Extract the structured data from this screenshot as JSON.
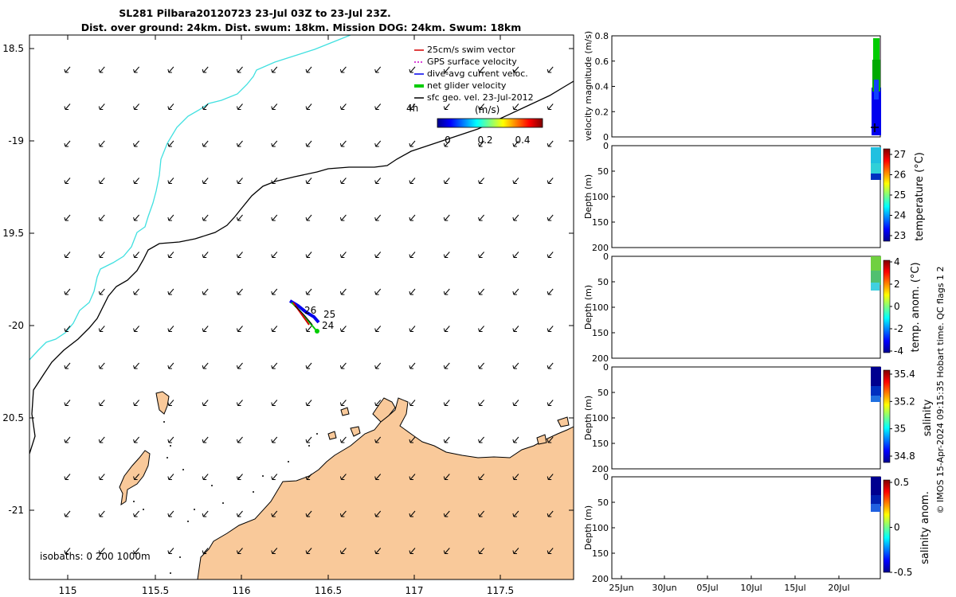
{
  "title": {
    "line1": "SL281 Pilbara20120723 23-Jul 03Z to 23-Jul 23Z.",
    "line2": "Dist. over ground: 24km. Dist. swum: 18km. Mission DOG: 24km. Swum: 18km"
  },
  "map": {
    "lon_ticks": [
      "115",
      "115.5",
      "116",
      "116.5",
      "117",
      "117.5"
    ],
    "lat_ticks": [
      "18.5",
      "-19",
      "19.5",
      "-20",
      "20.5",
      "-21"
    ],
    "isobath_label": "isobaths: 0   200  1000m",
    "legend": [
      {
        "label": "25cm/s swim vector",
        "color": "#d40000",
        "kind": "arrow"
      },
      {
        "label": "GPS surface velocity",
        "color": "#cc00cc",
        "kind": "dot"
      },
      {
        "label": "dive-avg current veloc.",
        "color": "#0000ee",
        "kind": "arrow"
      },
      {
        "label": "net glider velocity",
        "color": "#00cc00",
        "kind": "thick"
      },
      {
        "label": "sfc geo. vel. 23-Jul-2012",
        "color": "#000000",
        "kind": "arrow"
      }
    ],
    "arrow_scale_label": "4h",
    "colorbar_label": "(m/s)",
    "colorbar_ticks": [
      "0",
      "0.2",
      "0.4"
    ],
    "track_labels": [
      "26",
      "25",
      "24"
    ],
    "colors": {
      "land": "#f9c99a",
      "coast": "#000000",
      "isobath_200": "#000000",
      "isobath_1000": "#40e0e0"
    }
  },
  "panels": {
    "velocity": {
      "ylabel": "velocity magnitude (m/s)",
      "ticks": [
        "0.8",
        "0.6",
        "0.4",
        "0.2",
        "0"
      ]
    },
    "temperature": {
      "ylabel": "Depth (m)",
      "cbar_label": "temperature (°C)",
      "ticks": [
        "0",
        "50",
        "100",
        "150",
        "200"
      ],
      "cbar_ticks": [
        "27",
        "26",
        "25",
        "24",
        "23"
      ]
    },
    "temp_anom": {
      "ylabel": "Depth (m)",
      "cbar_label": "temp. anom. (°C)",
      "ticks": [
        "0",
        "50",
        "100",
        "150",
        "200"
      ],
      "cbar_ticks": [
        "4",
        "2",
        "0",
        "-2",
        "-4"
      ]
    },
    "salinity": {
      "ylabel": "Depth (m)",
      "cbar_label": "salinity",
      "ticks": [
        "0",
        "50",
        "100",
        "150",
        "200"
      ],
      "cbar_ticks": [
        "35.4",
        "35.2",
        "35",
        "34.8"
      ]
    },
    "sal_anom": {
      "ylabel": "Depth (m)",
      "cbar_label": "salinity anom.",
      "ticks": [
        "0",
        "50",
        "100",
        "150",
        "200"
      ],
      "cbar_ticks": [
        "0.5",
        "0",
        "-0.5"
      ]
    },
    "date_ticks": [
      "25Jun",
      "30Jun",
      "05Jul",
      "10Jul",
      "15Jul",
      "20Jul"
    ]
  },
  "credit": "© IMOS 15-Apr-2024 09:15:35 Hobart time. QC flags 1  2"
}
